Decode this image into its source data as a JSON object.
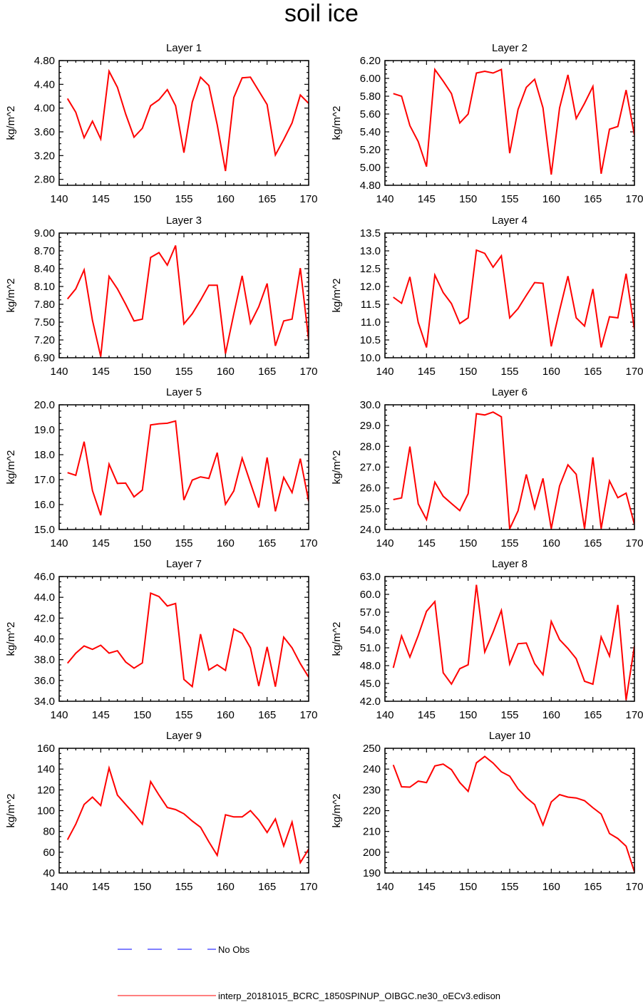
{
  "title": "soil ice",
  "colors": {
    "model": "#ff0000",
    "obs": "#0000ff",
    "axes": "#000000"
  },
  "legend": {
    "obs_label": "No Obs",
    "model_label": "interp_20181015_BCRC_1850SPINUP_OIBGC.ne30_oECv3.edison"
  },
  "chart_data": [
    {
      "type": "line",
      "title": "Layer 1",
      "ylabel": "kg/m^2",
      "xlim": [
        140,
        170
      ],
      "ylim": [
        2.7,
        4.8
      ],
      "xticks": [
        140,
        145,
        150,
        155,
        160,
        165,
        170
      ],
      "yticks": [
        2.8,
        3.2,
        3.6,
        4.0,
        4.4,
        4.8
      ],
      "ytick_labels": [
        "2.80",
        "3.20",
        "3.60",
        "4.00",
        "4.40",
        "4.80"
      ],
      "x": [
        141,
        142,
        143,
        144,
        145,
        146,
        147,
        148,
        149,
        150,
        151,
        152,
        153,
        154,
        155,
        156,
        157,
        158,
        159,
        160,
        161,
        162,
        163,
        164,
        165,
        166,
        167,
        168,
        169,
        170
      ],
      "series": [
        {
          "values": [
            4.16,
            3.93,
            3.5,
            3.78,
            3.48,
            4.62,
            4.35,
            3.9,
            3.51,
            3.66,
            4.04,
            4.14,
            4.31,
            4.04,
            3.25,
            4.1,
            4.52,
            4.38,
            3.72,
            2.94,
            4.18,
            4.51,
            4.52,
            4.29,
            4.06,
            3.21,
            3.47,
            3.75,
            4.22,
            4.08
          ]
        }
      ]
    },
    {
      "type": "line",
      "title": "Layer 2",
      "ylabel": "kg/m^2",
      "xlim": [
        140,
        170
      ],
      "ylim": [
        4.8,
        6.2
      ],
      "xticks": [
        140,
        145,
        150,
        155,
        160,
        165,
        170
      ],
      "yticks": [
        4.8,
        5.0,
        5.2,
        5.4,
        5.6,
        5.8,
        6.0,
        6.2
      ],
      "ytick_labels": [
        "4.80",
        "5.00",
        "5.20",
        "5.40",
        "5.60",
        "5.80",
        "6.00",
        "6.20"
      ],
      "x": [
        141,
        142,
        143,
        144,
        145,
        146,
        147,
        148,
        149,
        150,
        151,
        152,
        153,
        154,
        155,
        156,
        157,
        158,
        159,
        160,
        161,
        162,
        163,
        164,
        165,
        166,
        167,
        168,
        169,
        170
      ],
      "series": [
        {
          "values": [
            5.83,
            5.8,
            5.47,
            5.29,
            5.01,
            6.1,
            5.97,
            5.83,
            5.5,
            5.6,
            6.06,
            6.08,
            6.06,
            6.1,
            5.16,
            5.65,
            5.9,
            5.99,
            5.67,
            4.92,
            5.67,
            6.04,
            5.55,
            5.72,
            5.91,
            4.93,
            5.43,
            5.46,
            5.87,
            5.36
          ]
        }
      ]
    },
    {
      "type": "line",
      "title": "Layer 3",
      "ylabel": "kg/m^2",
      "xlim": [
        140,
        170
      ],
      "ylim": [
        6.9,
        9.0
      ],
      "xticks": [
        140,
        145,
        150,
        155,
        160,
        165,
        170
      ],
      "yticks": [
        6.9,
        7.2,
        7.5,
        7.8,
        8.1,
        8.4,
        8.7,
        9.0
      ],
      "ytick_labels": [
        "6.90",
        "7.20",
        "7.50",
        "7.80",
        "8.10",
        "8.40",
        "8.70",
        "9.00"
      ],
      "x": [
        141,
        142,
        143,
        144,
        145,
        146,
        147,
        148,
        149,
        150,
        151,
        152,
        153,
        154,
        155,
        156,
        157,
        158,
        159,
        160,
        161,
        162,
        163,
        164,
        165,
        166,
        167,
        168,
        169,
        170
      ],
      "series": [
        {
          "values": [
            7.89,
            8.06,
            8.38,
            7.53,
            6.92,
            8.27,
            8.06,
            7.8,
            7.52,
            7.55,
            8.59,
            8.67,
            8.46,
            8.79,
            7.47,
            7.64,
            7.87,
            8.12,
            8.12,
            6.97,
            7.64,
            8.28,
            7.48,
            7.76,
            8.15,
            7.1,
            7.52,
            7.55,
            8.41,
            7.2
          ]
        }
      ]
    },
    {
      "type": "line",
      "title": "Layer 4",
      "ylabel": "kg/m^2",
      "xlim": [
        140,
        170
      ],
      "ylim": [
        10.0,
        13.5
      ],
      "xticks": [
        140,
        145,
        150,
        155,
        160,
        165,
        170
      ],
      "yticks": [
        10.0,
        10.5,
        11.0,
        11.5,
        12.0,
        12.5,
        13.0,
        13.5
      ],
      "ytick_labels": [
        "10.0",
        "10.5",
        "11.0",
        "11.5",
        "12.0",
        "12.5",
        "13.0",
        "13.5"
      ],
      "x": [
        141,
        142,
        143,
        144,
        145,
        146,
        147,
        148,
        149,
        150,
        151,
        152,
        153,
        154,
        155,
        156,
        157,
        158,
        159,
        160,
        161,
        162,
        163,
        164,
        165,
        166,
        167,
        168,
        169,
        170
      ],
      "series": [
        {
          "values": [
            11.7,
            11.53,
            12.27,
            10.99,
            10.29,
            12.32,
            11.83,
            11.52,
            10.96,
            11.12,
            13.02,
            12.93,
            12.54,
            12.86,
            11.12,
            11.38,
            11.75,
            12.11,
            12.09,
            10.32,
            11.33,
            12.29,
            11.12,
            10.89,
            11.93,
            10.29,
            11.15,
            11.12,
            12.36,
            10.79
          ]
        }
      ]
    },
    {
      "type": "line",
      "title": "Layer 5",
      "ylabel": "kg/m^2",
      "xlim": [
        140,
        170
      ],
      "ylim": [
        15.0,
        20.0
      ],
      "xticks": [
        140,
        145,
        150,
        155,
        160,
        165,
        170
      ],
      "yticks": [
        15.0,
        16.0,
        17.0,
        18.0,
        19.0,
        20.0
      ],
      "ytick_labels": [
        "15.0",
        "16.0",
        "17.0",
        "18.0",
        "19.0",
        "20.0"
      ],
      "x": [
        141,
        142,
        143,
        144,
        145,
        146,
        147,
        148,
        149,
        150,
        151,
        152,
        153,
        154,
        155,
        156,
        157,
        158,
        159,
        160,
        161,
        162,
        163,
        164,
        165,
        166,
        167,
        168,
        169,
        170
      ],
      "series": [
        {
          "values": [
            17.28,
            17.17,
            18.52,
            16.56,
            15.57,
            17.62,
            16.85,
            16.86,
            16.31,
            16.58,
            19.19,
            19.24,
            19.26,
            19.35,
            16.18,
            16.98,
            17.11,
            17.05,
            18.08,
            16.01,
            16.55,
            17.86,
            16.87,
            15.88,
            17.89,
            15.73,
            17.09,
            16.48,
            17.84,
            16.13
          ]
        }
      ]
    },
    {
      "type": "line",
      "title": "Layer 6",
      "ylabel": "kg/m^2",
      "xlim": [
        140,
        170
      ],
      "ylim": [
        24.0,
        30.0
      ],
      "xticks": [
        140,
        145,
        150,
        155,
        160,
        165,
        170
      ],
      "yticks": [
        24.0,
        25.0,
        26.0,
        27.0,
        28.0,
        29.0,
        30.0
      ],
      "ytick_labels": [
        "24.0",
        "25.0",
        "26.0",
        "27.0",
        "28.0",
        "29.0",
        "30.0"
      ],
      "x": [
        141,
        142,
        143,
        144,
        145,
        146,
        147,
        148,
        149,
        150,
        151,
        152,
        153,
        154,
        155,
        156,
        157,
        158,
        159,
        160,
        161,
        162,
        163,
        164,
        165,
        166,
        167,
        168,
        169,
        170
      ],
      "series": [
        {
          "values": [
            25.44,
            25.52,
            27.99,
            25.23,
            24.48,
            26.28,
            25.6,
            25.25,
            24.91,
            25.72,
            29.57,
            29.51,
            29.65,
            29.42,
            24.03,
            24.9,
            26.65,
            25.02,
            26.46,
            24.04,
            26.1,
            27.11,
            26.66,
            24.04,
            27.47,
            24.04,
            26.34,
            25.53,
            25.75,
            24.24
          ]
        }
      ]
    },
    {
      "type": "line",
      "title": "Layer 7",
      "ylabel": "kg/m^2",
      "xlim": [
        140,
        170
      ],
      "ylim": [
        34.0,
        46.0
      ],
      "xticks": [
        140,
        145,
        150,
        155,
        160,
        165,
        170
      ],
      "yticks": [
        34.0,
        36.0,
        38.0,
        40.0,
        42.0,
        44.0,
        46.0
      ],
      "ytick_labels": [
        "34.0",
        "36.0",
        "38.0",
        "40.0",
        "42.0",
        "44.0",
        "46.0"
      ],
      "x": [
        141,
        142,
        143,
        144,
        145,
        146,
        147,
        148,
        149,
        150,
        151,
        152,
        153,
        154,
        155,
        156,
        157,
        158,
        159,
        160,
        161,
        162,
        163,
        164,
        165,
        166,
        167,
        168,
        169,
        170
      ],
      "series": [
        {
          "values": [
            37.66,
            38.62,
            39.32,
            38.99,
            39.39,
            38.63,
            38.86,
            37.78,
            37.18,
            37.69,
            44.4,
            44.07,
            43.17,
            43.41,
            36.1,
            35.41,
            40.46,
            37.01,
            37.51,
            36.97,
            40.95,
            40.53,
            39.14,
            35.46,
            39.23,
            35.4,
            40.17,
            39.14,
            37.62,
            36.32
          ]
        }
      ]
    },
    {
      "type": "line",
      "title": "Layer 8",
      "ylabel": "kg/m^2",
      "xlim": [
        140,
        170
      ],
      "ylim": [
        42.0,
        63.0
      ],
      "xticks": [
        140,
        145,
        150,
        155,
        160,
        165,
        170
      ],
      "yticks": [
        42.0,
        45.0,
        48.0,
        51.0,
        54.0,
        57.0,
        60.0,
        63.0
      ],
      "ytick_labels": [
        "42.0",
        "45.0",
        "48.0",
        "51.0",
        "54.0",
        "57.0",
        "60.0",
        "63.0"
      ],
      "x": [
        141,
        142,
        143,
        144,
        145,
        146,
        147,
        148,
        149,
        150,
        151,
        152,
        153,
        154,
        155,
        156,
        157,
        158,
        159,
        160,
        161,
        162,
        163,
        164,
        165,
        166,
        167,
        168,
        169,
        170
      ],
      "series": [
        {
          "values": [
            47.63,
            53.01,
            49.44,
            53.09,
            57.14,
            58.79,
            46.8,
            44.89,
            47.49,
            48.15,
            61.61,
            50.29,
            53.62,
            57.3,
            48.27,
            51.68,
            51.81,
            48.34,
            46.48,
            55.45,
            52.37,
            50.89,
            49.16,
            45.36,
            44.88,
            52.84,
            49.61,
            58.22,
            42.21,
            51.31
          ]
        }
      ]
    },
    {
      "type": "line",
      "title": "Layer 9",
      "ylabel": "kg/m^2",
      "xlim": [
        140,
        170
      ],
      "ylim": [
        40,
        160
      ],
      "xticks": [
        140,
        145,
        150,
        155,
        160,
        165,
        170
      ],
      "yticks": [
        40,
        60,
        80,
        100,
        120,
        140,
        160
      ],
      "ytick_labels": [
        "40",
        "60",
        "80",
        "100",
        "120",
        "140",
        "160"
      ],
      "x": [
        141,
        142,
        143,
        144,
        145,
        146,
        147,
        148,
        149,
        150,
        151,
        152,
        153,
        154,
        155,
        156,
        157,
        158,
        159,
        160,
        161,
        162,
        163,
        164,
        165,
        166,
        167,
        168,
        169,
        170
      ],
      "series": [
        {
          "values": [
            72,
            87,
            106,
            113,
            105,
            141,
            115,
            106,
            97,
            87,
            128,
            115,
            103,
            101,
            97,
            90,
            84,
            70,
            57,
            96,
            94,
            94,
            100,
            91,
            79,
            92,
            66,
            89,
            50,
            63
          ]
        }
      ]
    },
    {
      "type": "line",
      "title": "Layer 10",
      "ylabel": "kg/m^2",
      "xlim": [
        140,
        170
      ],
      "ylim": [
        190,
        250
      ],
      "xticks": [
        140,
        145,
        150,
        155,
        160,
        165,
        170
      ],
      "yticks": [
        190,
        200,
        210,
        220,
        230,
        240,
        250
      ],
      "ytick_labels": [
        "190",
        "200",
        "210",
        "220",
        "230",
        "240",
        "250"
      ],
      "x": [
        141,
        142,
        143,
        144,
        145,
        146,
        147,
        148,
        149,
        150,
        151,
        152,
        153,
        154,
        155,
        156,
        157,
        158,
        159,
        160,
        161,
        162,
        163,
        164,
        165,
        166,
        167,
        168,
        169,
        170
      ],
      "series": [
        {
          "values": [
            242,
            231.5,
            231.3,
            234.2,
            233.5,
            241.5,
            242.4,
            239.7,
            233.5,
            229.3,
            243,
            246.1,
            242.9,
            238.7,
            236.6,
            230.5,
            226.3,
            222.9,
            213.1,
            224.2,
            227.7,
            226.5,
            226.1,
            224.8,
            221.4,
            218.4,
            209,
            206.6,
            202.9,
            190.5
          ]
        }
      ]
    }
  ]
}
